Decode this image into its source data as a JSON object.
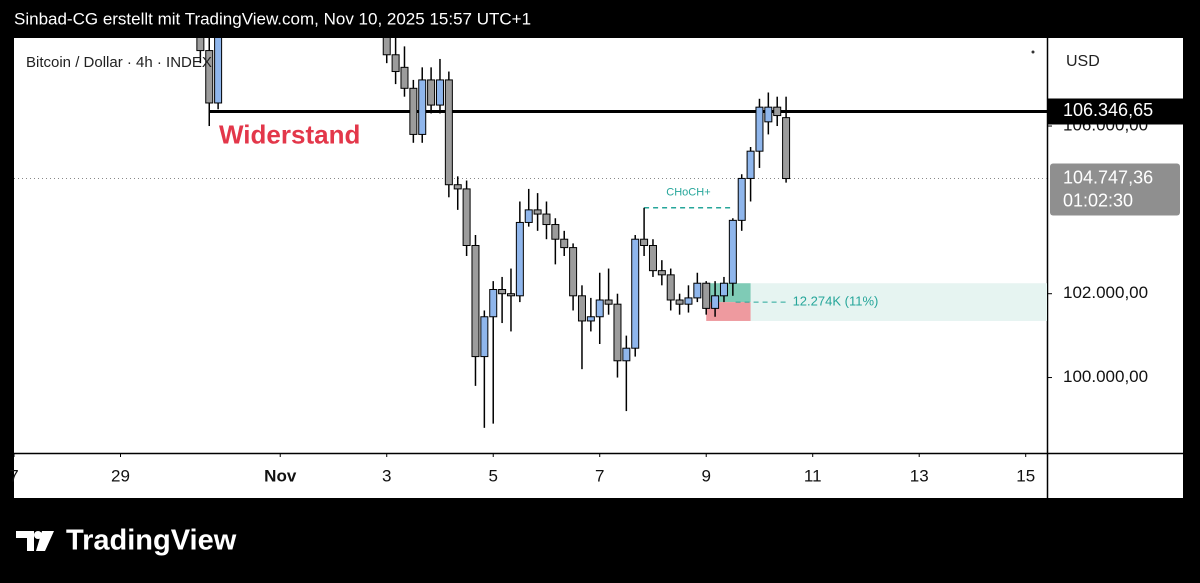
{
  "header": {
    "text": "Sinbad-CG erstellt mit TradingView.com, Nov 10, 2025 15:57 UTC+1"
  },
  "footer": {
    "brand": "TradingView"
  },
  "chart_data": {
    "type": "candlestick",
    "title": "Bitcoin / Dollar · 4h · INDEX",
    "y_label": "USD",
    "up_color": "#8fb6ec",
    "down_color": "#9c9c9c",
    "x": [
      "2025-10-30T12:00",
      "2025-10-30T16:00",
      "2025-10-30T20:00",
      "2025-11-03T00:00",
      "2025-11-03T04:00",
      "2025-11-03T08:00",
      "2025-11-03T12:00",
      "2025-11-03T16:00",
      "2025-11-03T20:00",
      "2025-11-04T00:00",
      "2025-11-04T04:00",
      "2025-11-04T08:00",
      "2025-11-04T12:00",
      "2025-11-04T16:00",
      "2025-11-04T20:00",
      "2025-11-05T00:00",
      "2025-11-05T04:00",
      "2025-11-05T08:00",
      "2025-11-05T12:00",
      "2025-11-05T16:00",
      "2025-11-05T20:00",
      "2025-11-06T00:00",
      "2025-11-06T04:00",
      "2025-11-06T08:00",
      "2025-11-06T12:00",
      "2025-11-06T16:00",
      "2025-11-06T20:00",
      "2025-11-07T00:00",
      "2025-11-07T04:00",
      "2025-11-07T08:00",
      "2025-11-07T12:00",
      "2025-11-07T16:00",
      "2025-11-07T20:00",
      "2025-11-08T00:00",
      "2025-11-08T04:00",
      "2025-11-08T08:00",
      "2025-11-08T12:00",
      "2025-11-08T16:00",
      "2025-11-08T20:00",
      "2025-11-09T00:00",
      "2025-11-09T04:00",
      "2025-11-09T08:00",
      "2025-11-09T12:00",
      "2025-11-09T16:00",
      "2025-11-09T20:00",
      "2025-11-10T00:00",
      "2025-11-10T04:00",
      "2025-11-10T08:00",
      "2025-11-10T12:00"
    ],
    "open": [
      108300,
      107800,
      106550,
      108300,
      107700,
      107400,
      106900,
      105800,
      107100,
      106500,
      107100,
      104600,
      104500,
      103150,
      100500,
      101450,
      102100,
      102000,
      101950,
      103700,
      104000,
      103900,
      103650,
      103300,
      103100,
      101950,
      101350,
      101450,
      101850,
      101750,
      100400,
      100700,
      103300,
      103150,
      102550,
      102450,
      101850,
      101750,
      101900,
      102250,
      101650,
      101950,
      102250,
      103750,
      104750,
      105400,
      106100,
      106450,
      106200
    ],
    "high": [
      108500,
      108200,
      108500,
      108600,
      108200,
      107900,
      107100,
      107400,
      107400,
      107600,
      107300,
      104800,
      104700,
      103400,
      101600,
      102300,
      102400,
      102600,
      104200,
      104500,
      104400,
      104200,
      103800,
      103500,
      103200,
      102200,
      101900,
      102500,
      102600,
      102000,
      101000,
      103400,
      104050,
      103300,
      102800,
      102600,
      102000,
      102200,
      102500,
      102300,
      102300,
      102400,
      103800,
      104850,
      105500,
      106650,
      106800,
      106700,
      106700
    ],
    "low": [
      107500,
      106000,
      106400,
      107500,
      107000,
      106700,
      105600,
      105600,
      106300,
      106300,
      104300,
      104000,
      102900,
      99800,
      98800,
      98900,
      101300,
      101100,
      101800,
      103600,
      103500,
      103300,
      102700,
      102900,
      101600,
      100200,
      101100,
      100800,
      101500,
      100000,
      99200,
      100500,
      102900,
      102400,
      102200,
      101600,
      101500,
      101550,
      101800,
      101500,
      101450,
      101800,
      101950,
      103500,
      104200,
      105000,
      105800,
      106000,
      104650
    ],
    "close": [
      107800,
      106550,
      108300,
      107700,
      107300,
      106900,
      105800,
      107100,
      106500,
      107100,
      104600,
      104500,
      103150,
      100500,
      101450,
      102100,
      102000,
      101950,
      103700,
      104000,
      103900,
      103650,
      103300,
      103100,
      101950,
      101350,
      101450,
      101850,
      101750,
      100400,
      100700,
      103300,
      103150,
      102550,
      102450,
      101850,
      101750,
      101900,
      102250,
      101650,
      101950,
      102250,
      103750,
      104750,
      105400,
      106450,
      106450,
      106250,
      104747.36
    ],
    "xlim": [
      "2025-10-27T00:00",
      "2025-11-15T09:36"
    ],
    "xticks": [
      {
        "value": "2025-10-27T00:00",
        "label": "7"
      },
      {
        "value": "2025-10-29T00:00",
        "label": "29"
      },
      {
        "value": "2025-11-01T00:00",
        "label": "Nov"
      },
      {
        "value": "2025-11-03T00:00",
        "label": "3"
      },
      {
        "value": "2025-11-05T00:00",
        "label": "5"
      },
      {
        "value": "2025-11-07T00:00",
        "label": "7"
      },
      {
        "value": "2025-11-09T00:00",
        "label": "9"
      },
      {
        "value": "2025-11-11T00:00",
        "label": "11"
      },
      {
        "value": "2025-11-13T00:00",
        "label": "13"
      },
      {
        "value": "2025-11-15T00:00",
        "label": "15"
      }
    ],
    "ylim": [
      98200,
      108100
    ],
    "yticks": [
      {
        "value": 100000,
        "label": "100.000,00"
      },
      {
        "value": 102000,
        "label": "102.000,00"
      },
      {
        "value": 106000,
        "label": "106.000,00"
      }
    ],
    "resistance": {
      "value": 106346.65,
      "label": "106.346,65",
      "text": "Widerstand",
      "color": "#e3374a",
      "x_start": "2025-10-30T16:00"
    },
    "last_price": {
      "value": 104747.36,
      "label": "104.747,36",
      "countdown": "01:02:30"
    },
    "choch": {
      "text": "CHoCH+",
      "value": 104050,
      "x_start": "2025-11-07T20:00",
      "x_end": "2025-11-09T12:00",
      "color": "#26a69a"
    },
    "position": {
      "entry": 101800,
      "target": 102250,
      "stop": 101350,
      "x_start": "2025-11-09T00:00",
      "x_end": "2025-11-09T20:00",
      "label": "12.274K (11%)"
    }
  }
}
